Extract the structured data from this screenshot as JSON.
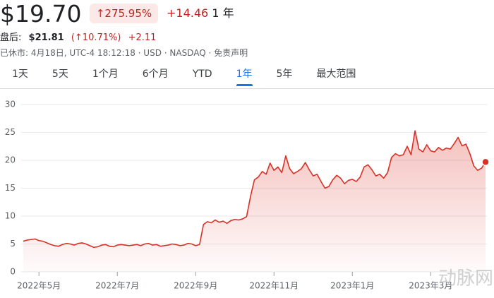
{
  "header": {
    "price": "$19.70",
    "change_pct": "↑275.95%",
    "change": "+14.46",
    "period": "1 年"
  },
  "after_hours": {
    "label": "盘后:",
    "price": "$21.81",
    "pct": "(↑10.71%)",
    "change": "+2.11"
  },
  "status": "已休市: 4月18日, UTC-4 18:12:18 · USD · NASDAQ · 免责声明",
  "tabs": {
    "items": [
      "1天",
      "5天",
      "1个月",
      "6个月",
      "YTD",
      "1年",
      "5年",
      "最大范围"
    ],
    "selected": 5
  },
  "watermark": "动脉网",
  "chart_data": {
    "type": "line",
    "categories": [
      null,
      null,
      null,
      null,
      "2022年5月",
      null,
      null,
      null,
      null,
      null,
      null,
      null,
      null,
      null,
      null,
      null,
      null,
      null,
      null,
      null,
      null,
      null,
      null,
      null,
      "2022年7月",
      null,
      null,
      null,
      null,
      null,
      null,
      null,
      null,
      null,
      null,
      null,
      null,
      null,
      null,
      null,
      null,
      null,
      null,
      null,
      "2022年9月",
      null,
      null,
      null,
      null,
      null,
      null,
      null,
      null,
      null,
      null,
      null,
      null,
      null,
      null,
      null,
      null,
      null,
      null,
      null,
      "2022年11月",
      null,
      null,
      null,
      null,
      null,
      null,
      null,
      null,
      null,
      null,
      null,
      null,
      null,
      null,
      null,
      null,
      null,
      null,
      null,
      "2023年1月",
      null,
      null,
      null,
      null,
      null,
      null,
      null,
      null,
      null,
      null,
      null,
      null,
      null,
      null,
      null,
      null,
      null,
      null,
      null,
      "2023年3月",
      null,
      null,
      null,
      null,
      null,
      null,
      null,
      null,
      null,
      null,
      null,
      null,
      null,
      null
    ],
    "series": [
      {
        "color": "#d93025",
        "values": [
          5.5,
          5.7,
          5.8,
          5.9,
          5.6,
          5.5,
          5.2,
          4.9,
          4.7,
          4.6,
          4.9,
          5.1,
          5.0,
          4.8,
          5.1,
          5.2,
          5.0,
          4.7,
          4.4,
          4.5,
          4.8,
          4.9,
          4.6,
          4.5,
          4.8,
          4.9,
          4.8,
          4.7,
          4.8,
          4.9,
          4.7,
          5.0,
          5.1,
          4.8,
          4.9,
          4.6,
          4.7,
          4.8,
          5.0,
          4.9,
          4.7,
          4.8,
          5.1,
          5.0,
          4.7,
          4.9,
          8.5,
          9.0,
          8.8,
          9.3,
          8.9,
          9.1,
          8.7,
          9.2,
          9.4,
          9.3,
          9.5,
          9.9,
          13.5,
          16.5,
          17.0,
          18.0,
          17.5,
          19.5,
          18.2,
          18.8,
          17.8,
          20.8,
          18.5,
          17.6,
          18.0,
          18.5,
          19.6,
          18.3,
          17.2,
          17.5,
          16.2,
          15.0,
          15.3,
          16.5,
          17.3,
          16.8,
          15.8,
          16.4,
          16.6,
          16.2,
          17.0,
          18.8,
          19.2,
          18.3,
          17.2,
          17.5,
          16.8,
          17.8,
          20.5,
          21.2,
          20.8,
          21.0,
          22.5,
          21.0,
          25.3,
          22.0,
          21.5,
          22.8,
          21.7,
          21.5,
          22.3,
          21.8,
          22.2,
          22.0,
          23.0,
          24.1,
          22.6,
          22.9,
          21.2,
          19.0,
          18.2,
          18.6,
          19.7
        ]
      }
    ],
    "ylim": [
      0,
      30
    ],
    "yticks": [
      0,
      5,
      10,
      15,
      20,
      25,
      30
    ],
    "grid": true
  }
}
